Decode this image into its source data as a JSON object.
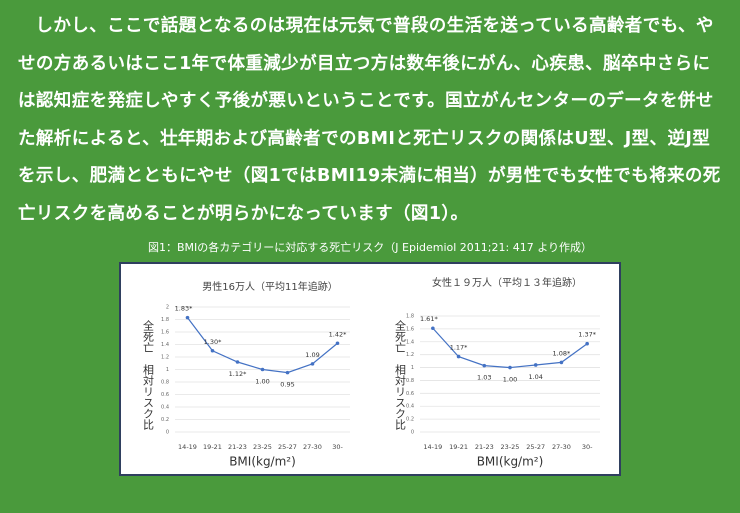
{
  "paragraph": "しかし、ここで話題となるのは現在は元気で普段の生活を送っている高齢者でも、やせの方あるいはここ1年で体重減少が目立つ方は数年後にがん、心疾患、脳卒中さらには認知症を発症しやすく予後が悪いということです。国立がんセンターのデータを併せた解析によると、壮年期および高齢者でのBMIと死亡リスクの関係はU型、J型、逆J型を示し、肥満とともにやせ（図1ではBMI19未満に相当）が男性でも女性でも将来の死亡リスクを高めることが明らかになっています（図1）。",
  "figure_caption": "図1：BMIの各カテゴリーに対応する死亡リスク（J Epidemiol 2011;21: 417 より作成）",
  "chart_data": [
    {
      "type": "line",
      "title": "男性16万人（平均11年追跡）",
      "y_label": "全死亡　相対リスク比",
      "x_label": "BMI(kg/m²)",
      "categories": [
        "14-19",
        "19-21",
        "21-23",
        "23-25",
        "25-27",
        "27-30",
        "30-"
      ],
      "values": [
        1.83,
        1.3,
        1.12,
        1.0,
        0.95,
        1.09,
        1.42
      ],
      "value_labels": [
        "1.83*",
        "1.30*",
        "1.12*",
        "1.00",
        "0.95",
        "1.09",
        "1.42*"
      ],
      "color": "#4472c4",
      "ylim": [
        0,
        2
      ],
      "yticks": [
        0,
        0.2,
        0.4,
        0.6,
        0.8,
        1,
        1.2,
        1.4,
        1.6,
        1.8,
        2
      ],
      "grid": true
    },
    {
      "type": "line",
      "title": "女性１９万人（平均１３年追跡）",
      "y_label": "全死亡　相対リスク比",
      "x_label": "BMI(kg/m²)",
      "categories": [
        "14-19",
        "19-21",
        "21-23",
        "23-25",
        "25-27",
        "27-30",
        "30-"
      ],
      "values": [
        1.61,
        1.17,
        1.03,
        1.0,
        1.04,
        1.08,
        1.37
      ],
      "value_labels": [
        "1.61*",
        "1.17*",
        "1.03",
        "1.00",
        "1.04",
        "1.08*",
        "1.37*"
      ],
      "color": "#4472c4",
      "ylim": [
        0,
        1.8
      ],
      "yticks": [
        0,
        0.2,
        0.4,
        0.6,
        0.8,
        1,
        1.2,
        1.4,
        1.6,
        1.8
      ],
      "grid": true
    }
  ]
}
